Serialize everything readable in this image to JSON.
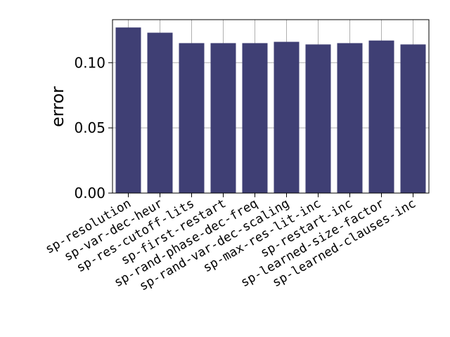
{
  "chart_data": {
    "type": "bar",
    "title": "",
    "xlabel": "",
    "ylabel": "error",
    "ylim": [
      0,
      0.133
    ],
    "yticks": [
      0.0,
      0.05,
      0.1
    ],
    "ytick_labels": [
      "0.00",
      "0.05",
      "0.10"
    ],
    "grid": true,
    "legend": "none",
    "categories": [
      "sp-resolution",
      "sp-var-dec-heur",
      "sp-res-cutoff-lits",
      "sp-first-restart",
      "sp-rand-phase-dec-freq",
      "sp-rand-var-dec-scaling",
      "sp-max-res-lit-inc",
      "sp-restart-inc",
      "sp-learned-size-factor",
      "sp-learned-clauses-inc"
    ],
    "values": [
      0.127,
      0.123,
      0.115,
      0.115,
      0.115,
      0.116,
      0.114,
      0.115,
      0.117,
      0.114
    ],
    "bar_color": "#3f3f74",
    "grid_color": "#b0b0b0"
  }
}
